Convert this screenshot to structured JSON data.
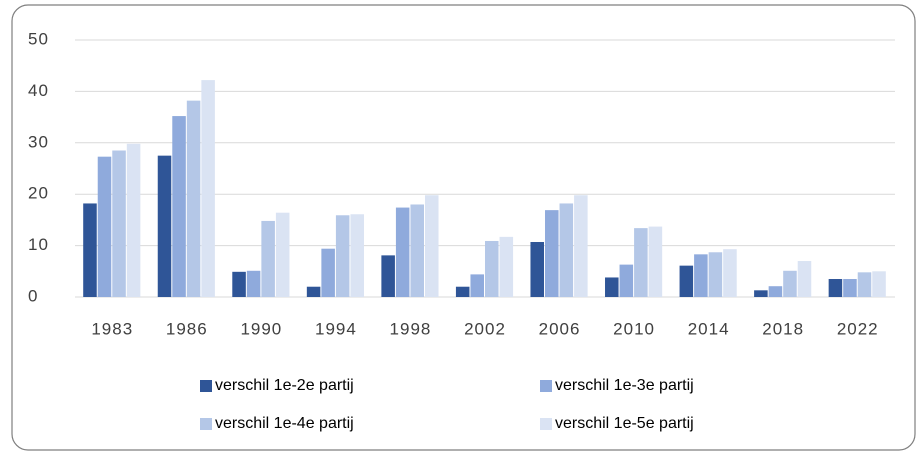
{
  "chart_data": {
    "type": "bar",
    "categories": [
      "1983",
      "1986",
      "1990",
      "1994",
      "1998",
      "2002",
      "2006",
      "2010",
      "2014",
      "2018",
      "2022"
    ],
    "series": [
      {
        "name": "verschil 1e-2e partij",
        "color": "#2f5597",
        "values": [
          18.2,
          27.5,
          4.9,
          2.0,
          8.1,
          2.0,
          10.7,
          3.8,
          6.1,
          1.3,
          3.5
        ]
      },
      {
        "name": "verschil 1e-3e partij",
        "color": "#8faadc",
        "values": [
          27.3,
          35.2,
          5.1,
          9.4,
          17.4,
          4.4,
          16.9,
          6.3,
          8.3,
          2.1,
          3.5
        ]
      },
      {
        "name": "verschil 1e-4e partij",
        "color": "#b4c7e7",
        "values": [
          28.5,
          38.2,
          14.8,
          15.9,
          18.0,
          10.9,
          18.2,
          13.4,
          8.7,
          5.1,
          4.8
        ]
      },
      {
        "name": "verschil 1e-5e partij",
        "color": "#dae3f3",
        "values": [
          29.8,
          42.2,
          16.4,
          16.1,
          19.8,
          11.7,
          19.8,
          13.7,
          9.3,
          7.0,
          5.0
        ]
      }
    ],
    "ylim": [
      0,
      50
    ],
    "yticks": [
      0,
      10,
      20,
      30,
      40,
      50
    ],
    "grid": true,
    "legend": "bottom"
  }
}
